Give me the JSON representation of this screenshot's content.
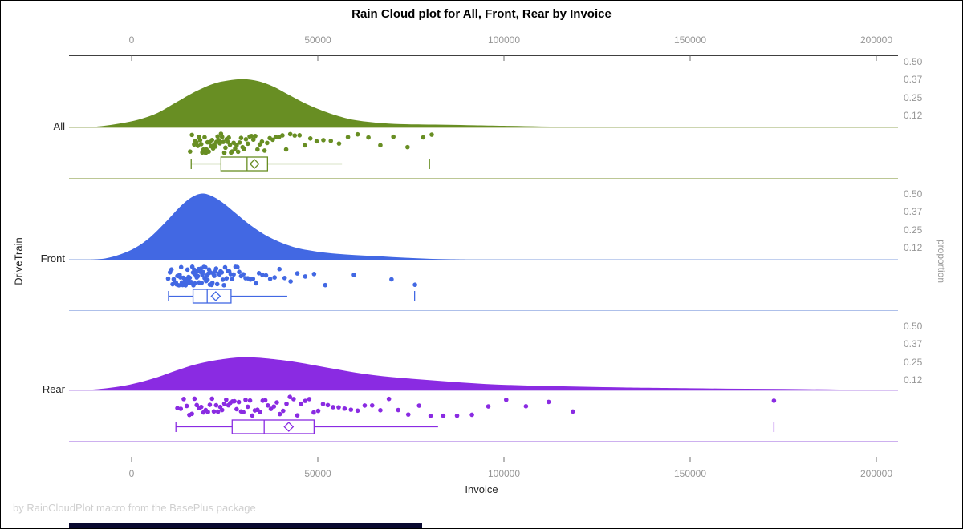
{
  "title": "Rain Cloud plot for All, Front, Rear by Invoice",
  "footer": "by RainCloudPlot macro from the BasePlus package",
  "chart_data": {
    "type": "raincloud",
    "title": "Rain Cloud plot for All, Front, Rear by Invoice",
    "xlabel": "Invoice",
    "ylabel_left": "DriveTrain",
    "ylabel_right": "proportion",
    "x_range": [
      -17000,
      206000
    ],
    "grid": false,
    "x_ticks": [
      {
        "value": 0,
        "label": "0"
      },
      {
        "value": 50000,
        "label": "50000"
      },
      {
        "value": 100000,
        "label": "100000"
      },
      {
        "value": 150000,
        "label": "150000"
      },
      {
        "value": 200000,
        "label": "200000"
      }
    ],
    "proportion_ticks": [
      {
        "value": 0.5,
        "label": "0.50"
      },
      {
        "value": 0.37,
        "label": "0.37"
      },
      {
        "value": 0.25,
        "label": "0.25"
      },
      {
        "value": 0.12,
        "label": "0.12"
      }
    ],
    "groups": [
      {
        "name": "All",
        "color": "#688E23",
        "light_color": "#BCC795",
        "box": {
          "whisker_low": 16000,
          "q1": 24000,
          "median": 31000,
          "mean": 33000,
          "q3": 36500,
          "whisker_high": 56500,
          "outliers": [
            80000
          ]
        },
        "density": [
          [
            -13,
            0
          ],
          [
            -8,
            0.01
          ],
          [
            -3,
            0.03
          ],
          [
            2,
            0.06
          ],
          [
            7,
            0.11
          ],
          [
            12,
            0.19
          ],
          [
            17,
            0.27
          ],
          [
            22,
            0.33
          ],
          [
            26,
            0.355
          ],
          [
            30,
            0.365
          ],
          [
            34,
            0.35
          ],
          [
            38,
            0.31
          ],
          [
            42,
            0.25
          ],
          [
            46,
            0.19
          ],
          [
            50,
            0.14
          ],
          [
            55,
            0.09
          ],
          [
            60,
            0.055
          ],
          [
            66,
            0.035
          ],
          [
            72,
            0.025
          ],
          [
            78,
            0.022
          ],
          [
            85,
            0.02
          ],
          [
            92,
            0.016
          ],
          [
            100,
            0.012
          ],
          [
            110,
            0.007
          ],
          [
            120,
            0.004
          ],
          [
            130,
            0.002
          ],
          [
            140,
            0
          ]
        ],
        "rain": [
          15700,
          16200,
          16800,
          17100,
          17400,
          17800,
          18100,
          18400,
          18700,
          19000,
          19300,
          19600,
          19900,
          20100,
          20400,
          20700,
          21000,
          21300,
          21600,
          21900,
          22200,
          22500,
          22800,
          23100,
          23400,
          23700,
          24000,
          24300,
          24600,
          24900,
          25200,
          25500,
          25800,
          26100,
          26400,
          26700,
          27000,
          27400,
          27800,
          28200,
          28600,
          29000,
          29400,
          29800,
          30200,
          30700,
          31200,
          31700,
          32200,
          32700,
          33200,
          33800,
          34400,
          35000,
          35700,
          36400,
          37100,
          37900,
          38700,
          39600,
          40500,
          41500,
          42600,
          43800,
          45100,
          46500,
          48000,
          49700,
          51500,
          53500,
          55700,
          58100,
          60700,
          63600,
          66800,
          70300,
          74100,
          78300,
          80600
        ]
      },
      {
        "name": "Front",
        "color": "#4268E3",
        "light_color": "#AEC0EA",
        "box": {
          "whisker_low": 9900,
          "q1": 16500,
          "median": 20300,
          "mean": 22600,
          "q3": 26700,
          "whisker_high": 41800,
          "outliers": [
            76000
          ]
        },
        "density": [
          [
            -11,
            0
          ],
          [
            -7,
            0.01
          ],
          [
            -3,
            0.04
          ],
          [
            1,
            0.09
          ],
          [
            5,
            0.17
          ],
          [
            9,
            0.28
          ],
          [
            13,
            0.4
          ],
          [
            16,
            0.47
          ],
          [
            19,
            0.5
          ],
          [
            22,
            0.475
          ],
          [
            25,
            0.42
          ],
          [
            28,
            0.35
          ],
          [
            31,
            0.28
          ],
          [
            34,
            0.22
          ],
          [
            37,
            0.17
          ],
          [
            41,
            0.12
          ],
          [
            45,
            0.085
          ],
          [
            50,
            0.06
          ],
          [
            55,
            0.045
          ],
          [
            60,
            0.035
          ],
          [
            65,
            0.028
          ],
          [
            70,
            0.02
          ],
          [
            75,
            0.013
          ],
          [
            80,
            0.007
          ],
          [
            85,
            0.003
          ],
          [
            90,
            0
          ]
        ],
        "rain": [
          9800,
          10300,
          10700,
          11000,
          11300,
          11600,
          11900,
          12100,
          12300,
          12500,
          12700,
          12900,
          13100,
          13300,
          13500,
          13700,
          13900,
          14100,
          14300,
          14500,
          14600,
          14800,
          15000,
          15100,
          15300,
          15500,
          15600,
          15800,
          16000,
          16100,
          16300,
          16500,
          16600,
          16800,
          17000,
          17100,
          17300,
          17500,
          17600,
          17800,
          18000,
          18100,
          18300,
          18500,
          18600,
          18800,
          19000,
          19200,
          19400,
          19600,
          19800,
          20000,
          20200,
          20400,
          20600,
          20800,
          21000,
          21200,
          21500,
          21700,
          22000,
          22200,
          22500,
          22700,
          23000,
          23300,
          23600,
          23900,
          24200,
          24500,
          24800,
          25100,
          25500,
          25800,
          26200,
          26600,
          27000,
          27400,
          27900,
          28400,
          28900,
          29400,
          30000,
          30600,
          31200,
          31900,
          32600,
          33400,
          34200,
          35100,
          36100,
          37200,
          38400,
          39700,
          41100,
          42700,
          44500,
          46600,
          49000,
          52000,
          59700,
          69800,
          76100
        ]
      },
      {
        "name": "Rear",
        "color": "#8A2BE2",
        "light_color": "#CDB0EF",
        "box": {
          "whisker_low": 11900,
          "q1": 27000,
          "median": 35600,
          "mean": 42200,
          "q3": 49000,
          "whisker_high": 82300,
          "outliers": [
            172500
          ]
        },
        "density": [
          [
            -13,
            0
          ],
          [
            -8,
            0.012
          ],
          [
            -3,
            0.03
          ],
          [
            2,
            0.06
          ],
          [
            7,
            0.1
          ],
          [
            12,
            0.15
          ],
          [
            17,
            0.195
          ],
          [
            22,
            0.225
          ],
          [
            27,
            0.245
          ],
          [
            31,
            0.25
          ],
          [
            35,
            0.245
          ],
          [
            40,
            0.23
          ],
          [
            45,
            0.21
          ],
          [
            50,
            0.185
          ],
          [
            55,
            0.16
          ],
          [
            60,
            0.135
          ],
          [
            65,
            0.115
          ],
          [
            70,
            0.1
          ],
          [
            75,
            0.088
          ],
          [
            80,
            0.077
          ],
          [
            85,
            0.067
          ],
          [
            90,
            0.057
          ],
          [
            95,
            0.048
          ],
          [
            100,
            0.042
          ],
          [
            108,
            0.035
          ],
          [
            116,
            0.03
          ],
          [
            124,
            0.026
          ],
          [
            132,
            0.022
          ],
          [
            140,
            0.019
          ],
          [
            150,
            0.016
          ],
          [
            160,
            0.013
          ],
          [
            170,
            0.011
          ],
          [
            180,
            0.009
          ],
          [
            190,
            0.006
          ],
          [
            200,
            0.003
          ],
          [
            207,
            0.001
          ]
        ],
        "rain": [
          12300,
          13200,
          14000,
          14800,
          15500,
          16200,
          16900,
          17500,
          18100,
          18700,
          19300,
          19900,
          20500,
          21000,
          21600,
          22100,
          22700,
          23200,
          23800,
          24300,
          24900,
          25400,
          26000,
          26500,
          27100,
          27600,
          28200,
          28800,
          29400,
          30000,
          30600,
          31200,
          31800,
          32400,
          33100,
          33800,
          34500,
          35200,
          35900,
          36600,
          37400,
          38200,
          39000,
          39800,
          40700,
          41600,
          42500,
          43500,
          44500,
          45500,
          46600,
          47700,
          48900,
          50100,
          51400,
          52700,
          54100,
          55600,
          57200,
          58900,
          60700,
          62600,
          64600,
          66800,
          69100,
          71600,
          74300,
          77200,
          80300,
          83700,
          87400,
          91400,
          95800,
          100600,
          105900,
          112000,
          118500,
          172500
        ]
      }
    ]
  }
}
